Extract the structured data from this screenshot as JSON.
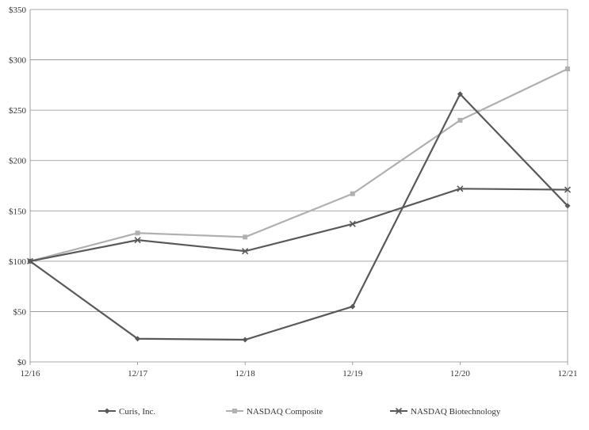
{
  "chart_data": {
    "type": "line",
    "title": "",
    "xlabel": "",
    "ylabel": "",
    "categories": [
      "12/16",
      "12/17",
      "12/18",
      "12/19",
      "12/20",
      "12/21"
    ],
    "ylim": [
      0,
      350
    ],
    "yticks": [
      0,
      50,
      100,
      150,
      200,
      250,
      300,
      350
    ],
    "ytick_labels": [
      "$0",
      "$50",
      "$100",
      "$150",
      "$200",
      "$250",
      "$300",
      "$350"
    ],
    "grid": true,
    "legend_position": "bottom",
    "series": [
      {
        "name": "Curis, Inc.",
        "color": "#595959",
        "marker": "diamond",
        "values": [
          100,
          23,
          22,
          55,
          266,
          155
        ]
      },
      {
        "name": "NASDAQ Composite",
        "color": "#b0b0b0",
        "marker": "square",
        "values": [
          100,
          128,
          124,
          167,
          240,
          291
        ]
      },
      {
        "name": "NASDAQ Biotechnology",
        "color": "#595959",
        "marker": "x",
        "values": [
          100,
          121,
          110,
          137,
          172,
          171
        ]
      }
    ]
  }
}
